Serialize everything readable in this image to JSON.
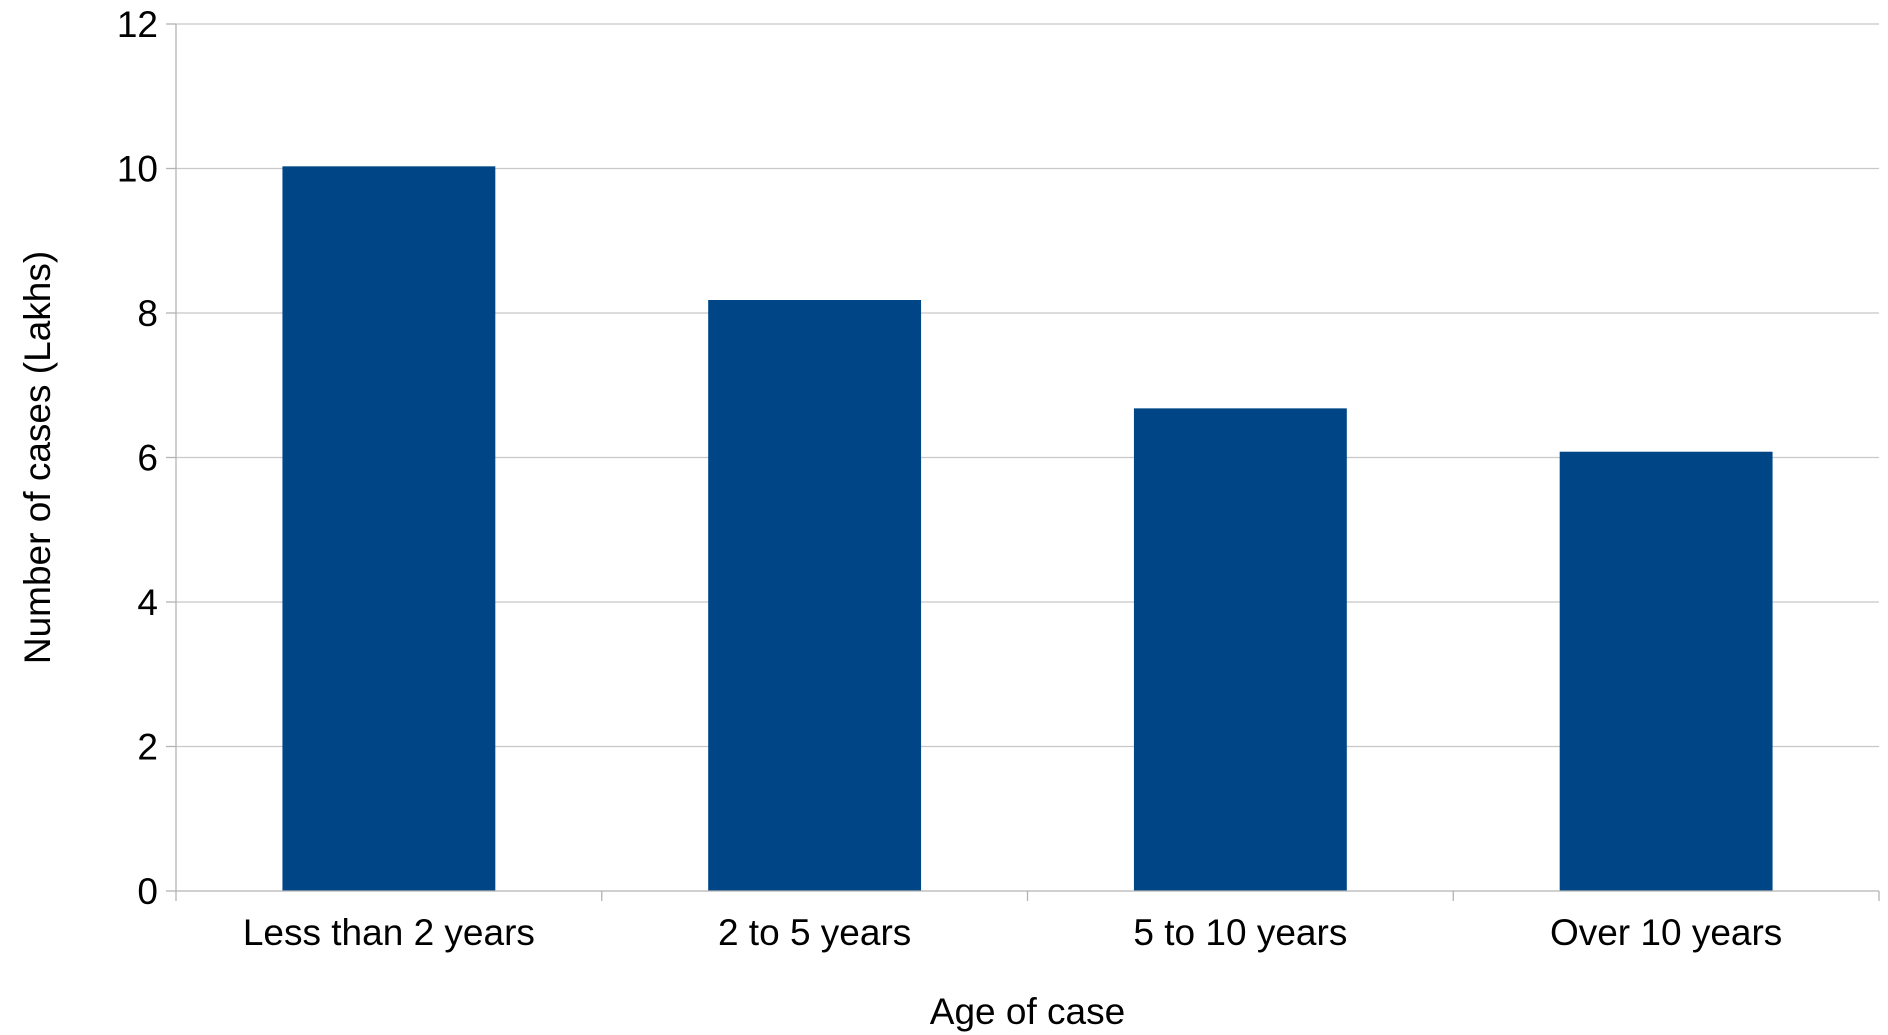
{
  "chart_data": {
    "type": "bar",
    "title": "",
    "xlabel": "Age of case",
    "ylabel": "Number of cases (Lakhs)",
    "categories": [
      "Less than 2 years",
      "2 to 5 years",
      "5 to 10 years",
      "Over 10 years"
    ],
    "values": [
      10.03,
      8.18,
      6.68,
      6.08
    ],
    "ylim": [
      0,
      12
    ],
    "yticks": [
      0,
      2,
      4,
      6,
      8,
      10,
      12
    ],
    "ytick_labels": [
      "0",
      "2",
      "4",
      "6",
      "8",
      "10",
      "12"
    ],
    "grid": true,
    "legend": "none",
    "colors": {
      "bar": "#004586",
      "grid": "#c8c8c8",
      "axis": "#b3b3b3",
      "text": "#000000"
    }
  }
}
